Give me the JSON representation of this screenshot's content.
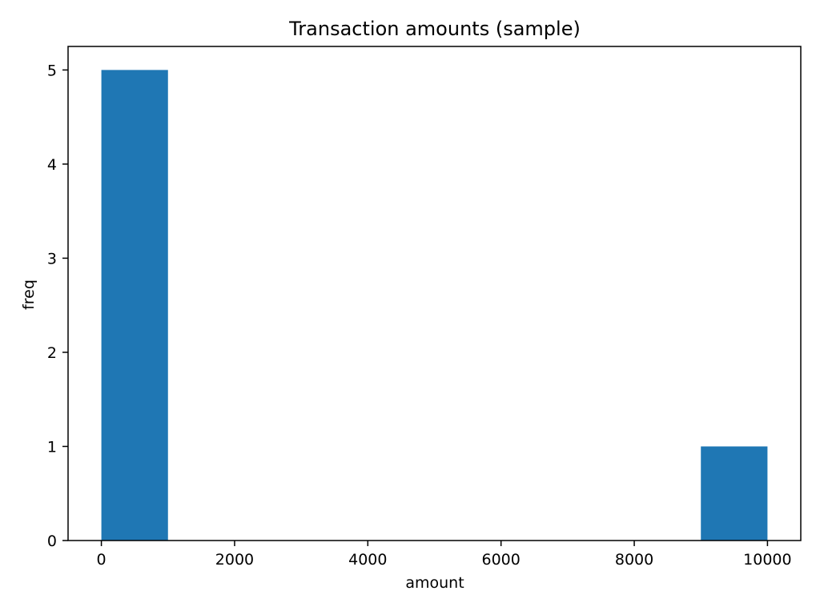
{
  "chart_data": {
    "type": "bar",
    "title": "Transaction amounts (sample)",
    "xlabel": "amount",
    "ylabel": "freq",
    "bins": [
      {
        "start": 0,
        "end": 1000,
        "count": 5
      },
      {
        "start": 1000,
        "end": 2000,
        "count": 0
      },
      {
        "start": 2000,
        "end": 3000,
        "count": 0
      },
      {
        "start": 3000,
        "end": 4000,
        "count": 0
      },
      {
        "start": 4000,
        "end": 5000,
        "count": 0
      },
      {
        "start": 5000,
        "end": 6000,
        "count": 0
      },
      {
        "start": 6000,
        "end": 7000,
        "count": 0
      },
      {
        "start": 7000,
        "end": 8000,
        "count": 0
      },
      {
        "start": 8000,
        "end": 9000,
        "count": 0
      },
      {
        "start": 9000,
        "end": 10000,
        "count": 1
      }
    ],
    "xlim": [
      -500,
      10500
    ],
    "ylim": [
      0,
      5.25
    ],
    "xticks": [
      0,
      2000,
      4000,
      6000,
      8000,
      10000
    ],
    "yticks": [
      0,
      1,
      2,
      3,
      4,
      5
    ],
    "bar_color": "#1f77b4",
    "grid": false,
    "legend": "none"
  }
}
